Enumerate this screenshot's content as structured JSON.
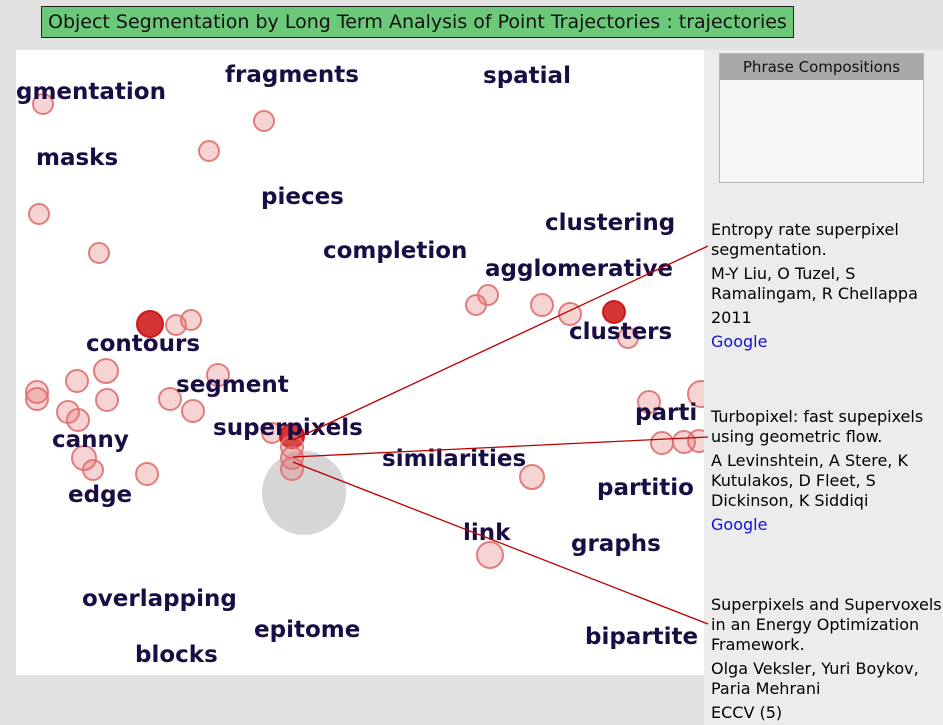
{
  "title": "Object Segmentation by Long Term Analysis of Point Trajectories : trajectories",
  "colors": {
    "title_bg": "#6cc97a",
    "word": "#1a0d44",
    "circle": "#e07070",
    "circle_strong": "#cc1010",
    "link_line": "#bb0000",
    "link_text": "#1010dd"
  },
  "phrase_panel": {
    "header": "Phrase Compositions"
  },
  "words": [
    {
      "text": "gmentation"
    },
    {
      "text": "fragments"
    },
    {
      "text": "spatial"
    },
    {
      "text": "masks"
    },
    {
      "text": "pieces"
    },
    {
      "text": "clustering"
    },
    {
      "text": "completion"
    },
    {
      "text": "agglomerative"
    },
    {
      "text": "clusters"
    },
    {
      "text": "contours"
    },
    {
      "text": "segment"
    },
    {
      "text": "superpixels"
    },
    {
      "text": "parti"
    },
    {
      "text": "canny"
    },
    {
      "text": "similarities"
    },
    {
      "text": "partitio"
    },
    {
      "text": "edge"
    },
    {
      "text": "link"
    },
    {
      "text": "graphs"
    },
    {
      "text": "overlapping"
    },
    {
      "text": "epitome"
    },
    {
      "text": "bipartite"
    },
    {
      "text": "blocks"
    }
  ],
  "papers": [
    {
      "title": "Entropy rate superpixel segmentation.",
      "authors": "M-Y Liu, O Tuzel, S Ramalingam, R Chellappa",
      "year": "2011",
      "link": "Google"
    },
    {
      "title": "Turbopixel: fast supepixels using geometric flow.",
      "authors": "A Levinshtein, A Stere, K Kutulakos, D Fleet, S Dickinson, K Siddiqi",
      "link": "Google"
    },
    {
      "title": "Superpixels and Supervoxels in an Energy Optimization Framework.",
      "authors": "Olga Veksler, Yuri Boykov, Paria Mehrani",
      "year": "ECCV (5)"
    }
  ]
}
